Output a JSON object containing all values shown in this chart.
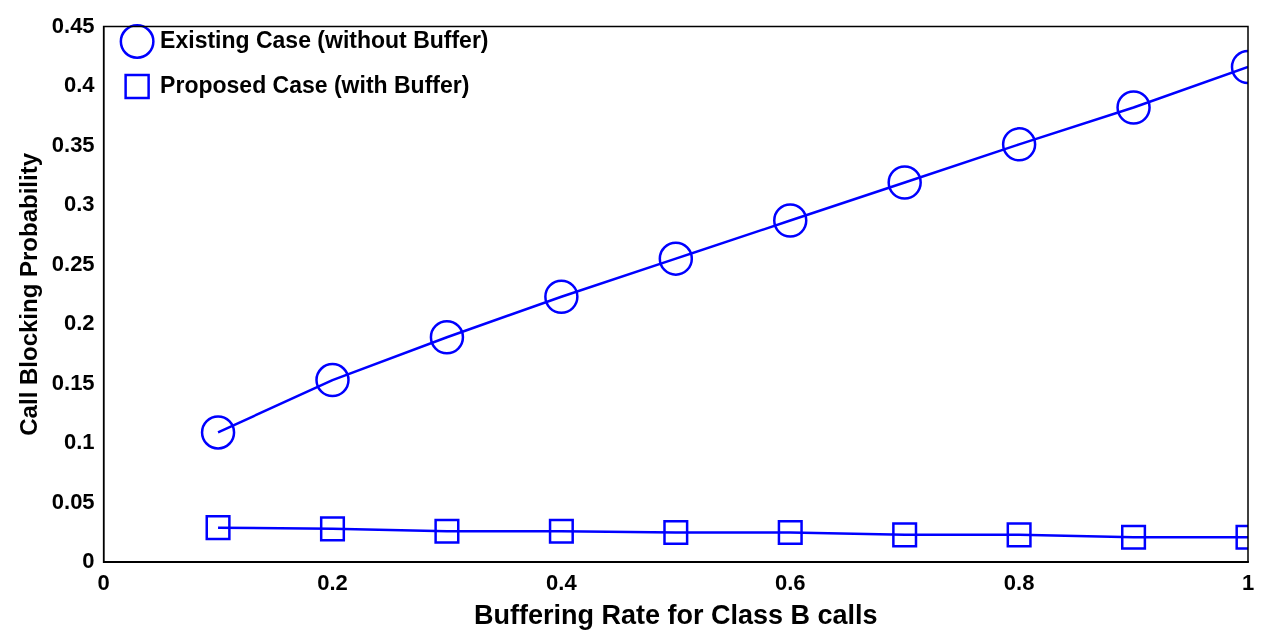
{
  "chart_data": {
    "type": "line",
    "xlabel": "Buffering Rate for Class B calls",
    "ylabel": "Call Blocking Probability",
    "x": [
      0.1,
      0.2,
      0.3,
      0.4,
      0.5,
      0.6,
      0.7,
      0.8,
      0.9,
      1.0
    ],
    "series": [
      {
        "name": "Existing Case (without Buffer)",
        "color": "#0000ff",
        "marker": "circle",
        "values": [
          0.109,
          0.153,
          0.189,
          0.223,
          0.255,
          0.287,
          0.319,
          0.351,
          0.382,
          0.416
        ]
      },
      {
        "name": "Proposed Case (with Buffer)",
        "color": "#0000ff",
        "marker": "square",
        "values": [
          0.029,
          0.028,
          0.026,
          0.026,
          0.025,
          0.025,
          0.023,
          0.023,
          0.021,
          0.021
        ]
      }
    ],
    "xlim": [
      0,
      1
    ],
    "xticks": [
      0,
      0.2,
      0.4,
      0.6,
      0.8,
      1
    ],
    "ylim": [
      0,
      0.45
    ],
    "yticks": [
      0,
      0.05,
      0.1,
      0.15,
      0.2,
      0.25,
      0.3,
      0.35,
      0.4,
      0.45
    ],
    "grid": false,
    "legend": "top left",
    "line_style": "solid"
  }
}
